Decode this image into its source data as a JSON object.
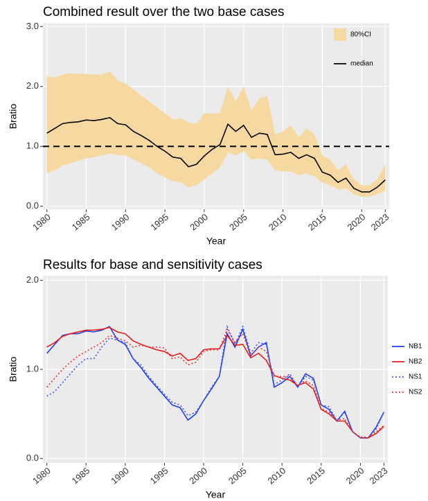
{
  "chart_data": [
    {
      "type": "line",
      "title": "Combined result over the two base cases",
      "x_label": "Year",
      "y_label": "Bratio",
      "x": [
        1980,
        1981,
        1982,
        1983,
        1984,
        1985,
        1986,
        1987,
        1988,
        1989,
        1990,
        1991,
        1992,
        1993,
        1994,
        1995,
        1996,
        1997,
        1998,
        1999,
        2000,
        2001,
        2002,
        2003,
        2004,
        2005,
        2006,
        2007,
        2008,
        2009,
        2010,
        2011,
        2012,
        2013,
        2014,
        2015,
        2016,
        2017,
        2018,
        2019,
        2020,
        2021,
        2022,
        2023
      ],
      "band": {
        "name": "80%CI",
        "color": "#f5d9a0",
        "lower": [
          0.55,
          0.6,
          0.68,
          0.72,
          0.76,
          0.8,
          0.82,
          0.85,
          0.88,
          0.85,
          0.85,
          0.78,
          0.72,
          0.65,
          0.55,
          0.48,
          0.42,
          0.4,
          0.32,
          0.35,
          0.45,
          0.55,
          0.65,
          0.9,
          0.85,
          0.92,
          0.78,
          0.8,
          0.78,
          0.6,
          0.58,
          0.58,
          0.52,
          0.55,
          0.5,
          0.4,
          0.35,
          0.28,
          0.3,
          0.2,
          0.16,
          0.16,
          0.2,
          0.26
        ],
        "upper": [
          2.17,
          2.15,
          2.2,
          2.22,
          2.21,
          2.21,
          2.2,
          2.2,
          2.25,
          2.1,
          2.05,
          1.95,
          1.85,
          1.75,
          1.65,
          1.55,
          1.45,
          1.47,
          1.4,
          1.38,
          1.55,
          1.55,
          1.55,
          2.0,
          1.75,
          2.0,
          1.6,
          1.8,
          1.85,
          1.2,
          1.25,
          1.35,
          1.15,
          1.3,
          1.2,
          0.85,
          0.78,
          0.6,
          0.7,
          0.45,
          0.35,
          0.35,
          0.45,
          0.7
        ]
      },
      "series": [
        {
          "name": "median",
          "color": "#000000",
          "dash": "solid",
          "values": [
            1.22,
            1.3,
            1.38,
            1.4,
            1.41,
            1.44,
            1.43,
            1.45,
            1.48,
            1.38,
            1.36,
            1.25,
            1.18,
            1.1,
            1.0,
            0.92,
            0.82,
            0.8,
            0.66,
            0.7,
            0.84,
            0.95,
            1.03,
            1.37,
            1.25,
            1.35,
            1.15,
            1.22,
            1.2,
            0.86,
            0.87,
            0.9,
            0.8,
            0.86,
            0.8,
            0.57,
            0.52,
            0.4,
            0.47,
            0.3,
            0.24,
            0.24,
            0.32,
            0.44
          ]
        }
      ],
      "hline": 1,
      "xlim": [
        1979.5,
        2023.5
      ],
      "xticks": [
        1980,
        1985,
        1990,
        1995,
        2000,
        2005,
        2010,
        2015,
        2020,
        2023
      ],
      "ylim": [
        -0.05,
        3.05
      ],
      "yticks": [
        {
          "value": 0,
          "label": "0.0"
        },
        {
          "value": 1,
          "label": "1.0"
        },
        {
          "value": 2,
          "label": "2.0"
        },
        {
          "value": 3,
          "label": "3.0"
        }
      ],
      "grid": true,
      "legend": "top-right"
    },
    {
      "type": "line",
      "title": "Results for base and sensitivity cases",
      "x_label": "Year",
      "y_label": "Bratio",
      "x": [
        1980,
        1981,
        1982,
        1983,
        1984,
        1985,
        1986,
        1987,
        1988,
        1989,
        1990,
        1991,
        1992,
        1993,
        1994,
        1995,
        1996,
        1997,
        1998,
        1999,
        2000,
        2001,
        2002,
        2003,
        2004,
        2005,
        2006,
        2007,
        2008,
        2009,
        2010,
        2011,
        2012,
        2013,
        2014,
        2015,
        2016,
        2017,
        2018,
        2019,
        2020,
        2021,
        2022,
        2023
      ],
      "series": [
        {
          "name": "NB1",
          "color": "#1f3ff0",
          "dash": "solid",
          "values": [
            1.18,
            1.28,
            1.38,
            1.4,
            1.4,
            1.43,
            1.42,
            1.44,
            1.48,
            1.33,
            1.28,
            1.12,
            1.02,
            0.9,
            0.8,
            0.7,
            0.6,
            0.57,
            0.43,
            0.5,
            0.65,
            0.78,
            0.92,
            1.4,
            1.25,
            1.45,
            1.15,
            1.25,
            1.3,
            0.8,
            0.85,
            0.92,
            0.8,
            0.95,
            0.9,
            0.6,
            0.55,
            0.42,
            0.53,
            0.3,
            0.23,
            0.23,
            0.35,
            0.52
          ]
        },
        {
          "name": "NB2",
          "color": "#e81c1c",
          "dash": "solid",
          "values": [
            1.25,
            1.3,
            1.37,
            1.4,
            1.42,
            1.44,
            1.44,
            1.45,
            1.47,
            1.42,
            1.4,
            1.32,
            1.28,
            1.25,
            1.22,
            1.2,
            1.15,
            1.18,
            1.1,
            1.12,
            1.22,
            1.23,
            1.23,
            1.38,
            1.27,
            1.28,
            1.13,
            1.18,
            1.1,
            0.93,
            0.9,
            0.88,
            0.82,
            0.85,
            0.78,
            0.55,
            0.5,
            0.42,
            0.42,
            0.3,
            0.23,
            0.23,
            0.28,
            0.36
          ]
        },
        {
          "name": "NS1",
          "color": "#3a55f5",
          "dash": "dotted",
          "values": [
            0.7,
            0.75,
            0.85,
            0.95,
            1.05,
            1.12,
            1.12,
            1.25,
            1.35,
            1.33,
            1.3,
            1.12,
            1.05,
            0.92,
            0.82,
            0.72,
            0.63,
            0.6,
            0.48,
            0.52,
            0.65,
            0.8,
            0.92,
            1.48,
            1.28,
            1.48,
            1.18,
            1.3,
            1.28,
            0.83,
            0.88,
            0.95,
            0.8,
            0.92,
            0.88,
            0.6,
            0.58,
            0.42,
            0.52,
            0.3,
            0.23,
            0.23,
            0.33,
            0.52
          ]
        },
        {
          "name": "NS2",
          "color": "#f03030",
          "dash": "dotted",
          "values": [
            0.8,
            0.9,
            1.0,
            1.08,
            1.15,
            1.2,
            1.25,
            1.3,
            1.38,
            1.35,
            1.32,
            1.25,
            1.27,
            1.25,
            1.25,
            1.24,
            1.12,
            1.14,
            1.05,
            1.08,
            1.2,
            1.22,
            1.22,
            1.45,
            1.3,
            1.4,
            1.15,
            1.25,
            1.2,
            0.92,
            0.92,
            0.92,
            0.82,
            0.87,
            0.82,
            0.56,
            0.52,
            0.43,
            0.45,
            0.3,
            0.24,
            0.24,
            0.3,
            0.37
          ]
        }
      ],
      "xlim": [
        1979.5,
        2023.5
      ],
      "xticks": [
        1980,
        1985,
        1990,
        1995,
        2000,
        2005,
        2010,
        2015,
        2020,
        2023
      ],
      "ylim": [
        -0.05,
        2.05
      ],
      "yticks": [
        {
          "value": 0,
          "label": "0.0"
        },
        {
          "value": 1,
          "label": "1.0"
        },
        {
          "value": 2,
          "label": "2.0"
        }
      ],
      "grid": true,
      "legend": "right"
    }
  ]
}
